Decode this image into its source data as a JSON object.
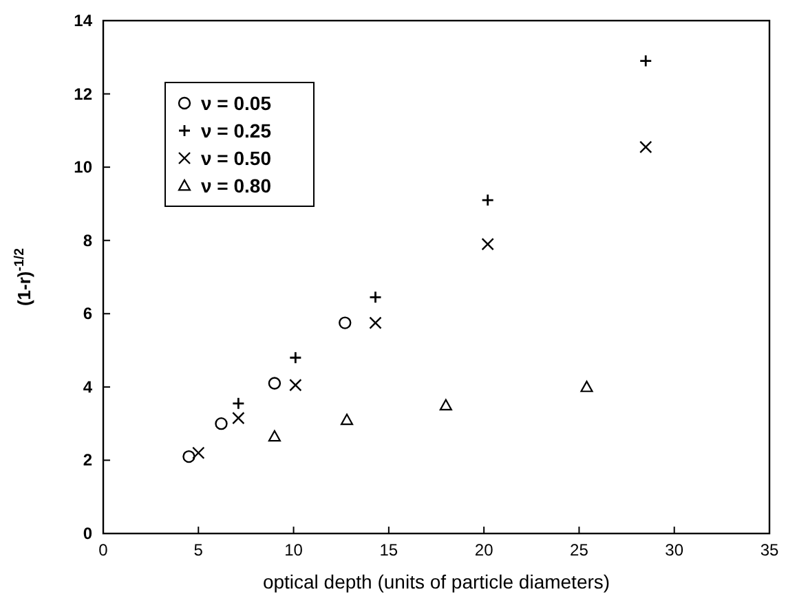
{
  "chart_data": {
    "type": "scatter",
    "xlabel": "optical depth (units of particle diameters)",
    "ylabel": "(1-r)$^{-1/2}$",
    "xlim": [
      0,
      35
    ],
    "xticks": [
      0,
      5,
      10,
      15,
      20,
      25,
      30,
      35
    ],
    "ylim": [
      0,
      14
    ],
    "yticks": [
      0,
      2,
      4,
      6,
      8,
      10,
      12,
      14
    ],
    "legend": "top left",
    "grid": false,
    "series": [
      {
        "name": "ν = 0.05",
        "color": "#000000",
        "marker": "circle",
        "x": [
          4.5,
          6.2,
          9.0,
          12.7
        ],
        "values": [
          2.1,
          3.0,
          4.1,
          5.75
        ]
      },
      {
        "name": "ν = 0.25",
        "color": "#000000",
        "marker": "plus",
        "x": [
          7.1,
          10.1,
          14.3,
          20.2,
          28.5
        ],
        "values": [
          3.55,
          4.8,
          6.45,
          9.1,
          12.9
        ]
      },
      {
        "name": "ν = 0.50",
        "color": "#000000",
        "marker": "cross",
        "x": [
          5.0,
          7.1,
          10.1,
          14.3,
          20.2,
          28.5
        ],
        "values": [
          2.2,
          3.15,
          4.05,
          5.75,
          7.9,
          10.55
        ]
      },
      {
        "name": "ν = 0.80",
        "color": "#000000",
        "marker": "triangle",
        "x": [
          9.0,
          12.8,
          18.0,
          25.4
        ],
        "values": [
          2.65,
          3.1,
          3.5,
          4.0
        ]
      }
    ]
  }
}
